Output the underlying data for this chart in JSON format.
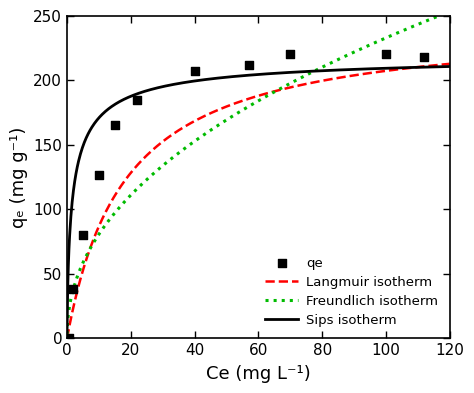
{
  "scatter_x": [
    0.5,
    2.0,
    5.0,
    10.0,
    15.0,
    22.0,
    40.0,
    57.0,
    70.0,
    100.0,
    112.0
  ],
  "scatter_y": [
    0.0,
    38.0,
    80.0,
    127.0,
    165.0,
    185.0,
    207.0,
    212.0,
    220.0,
    220.0,
    218.0
  ],
  "xlim": [
    0,
    120
  ],
  "ylim": [
    0,
    250
  ],
  "xticks": [
    0,
    20,
    40,
    60,
    80,
    100,
    120
  ],
  "yticks": [
    0,
    50,
    100,
    150,
    200,
    250
  ],
  "xlabel": "Ce (mg L⁻¹)",
  "ylabel": "qₑ (mg g⁻¹)",
  "legend_labels": [
    "qe",
    "Langmuir isotherm",
    "Freundlich isotherm",
    "Sips isotherm"
  ],
  "langmuir_color": "#ff0000",
  "freundlich_color": "#00bb00",
  "sips_color": "#000000",
  "scatter_color": "#000000",
  "langmuir_params": {
    "qmax": 245.0,
    "KL": 0.055
  },
  "freundlich_params": {
    "KF": 28.0,
    "n": 0.46
  },
  "sips_params": {
    "qmax": 221.0,
    "KS": 0.55,
    "ms": 0.72
  }
}
